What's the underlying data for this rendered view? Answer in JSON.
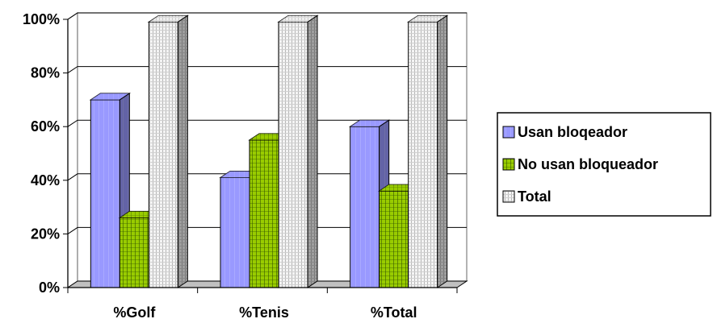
{
  "chart_data": {
    "type": "bar",
    "subtype": "3d-clustered-column",
    "categories": [
      "%Golf",
      "%Tenis",
      "%Total"
    ],
    "series": [
      {
        "name": "Usan bloqeador",
        "values": [
          70,
          41,
          60
        ],
        "color": "#9999FF"
      },
      {
        "name": "No usan bloqueador",
        "values": [
          26,
          55,
          36
        ],
        "color": "#99CC00"
      },
      {
        "name": "Total",
        "values": [
          99,
          99,
          99
        ],
        "color": "#E8E8E8"
      }
    ],
    "y_ticks": [
      "0%",
      "20%",
      "40%",
      "60%",
      "80%",
      "100%"
    ],
    "ylim": [
      0,
      100
    ],
    "grid": true,
    "legend_position": "right"
  }
}
